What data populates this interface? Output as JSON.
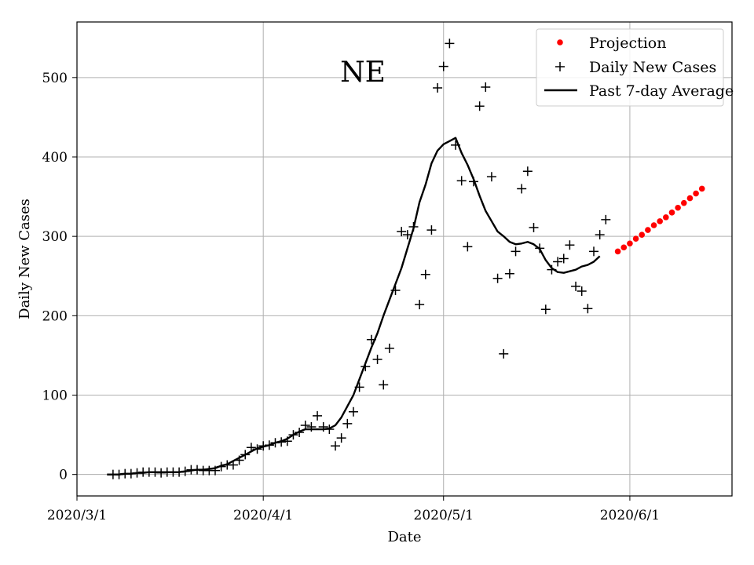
{
  "chart_data": {
    "type": "line",
    "title": "NE",
    "xlabel": "Date",
    "ylabel": "Daily New Cases",
    "x_start_date": "2020/3/1",
    "x_tick_labels": [
      "2020/3/1",
      "2020/4/1",
      "2020/5/1",
      "2020/6/1"
    ],
    "x_tick_days": [
      0,
      31,
      61,
      92
    ],
    "xlim_days": [
      0,
      109
    ],
    "y_ticks": [
      0,
      100,
      200,
      300,
      400,
      500
    ],
    "ylim": [
      -27,
      570
    ],
    "grid": true,
    "legend_position": "top-right",
    "series": [
      {
        "name": "Projection",
        "style": "red-dot",
        "color": "#ff0000",
        "start_day": 90,
        "values": [
          281,
          286,
          291,
          297,
          302,
          308,
          314,
          319,
          324,
          330,
          336,
          342,
          348,
          354,
          360
        ]
      },
      {
        "name": "Daily New Cases",
        "style": "plus-marker",
        "color": "#000000",
        "start_day": 6,
        "values": [
          0,
          0,
          1,
          1,
          2,
          3,
          3,
          3,
          2,
          3,
          3,
          3,
          4,
          6,
          6,
          5,
          5,
          5,
          10,
          12,
          12,
          18,
          25,
          34,
          32,
          36,
          37,
          40,
          41,
          42,
          50,
          53,
          62,
          60,
          74,
          60,
          57,
          36,
          46,
          64,
          79,
          110,
          136,
          170,
          145,
          113,
          159,
          232,
          306,
          302,
          312,
          214,
          252,
          308,
          487,
          514,
          543,
          415,
          370,
          287,
          369,
          464,
          488,
          375,
          247,
          152,
          253,
          281,
          360,
          382,
          311,
          285,
          208,
          258,
          268,
          272,
          289,
          237,
          231,
          209,
          281,
          302,
          321
        ]
      },
      {
        "name": "Past 7-day Average",
        "style": "line",
        "color": "#000000",
        "start_day": 5,
        "values": [
          0,
          0,
          0,
          1,
          1,
          2,
          2,
          3,
          3,
          3,
          3,
          3,
          3,
          4,
          5,
          6,
          6,
          7,
          8,
          11,
          13,
          17,
          21,
          25,
          29,
          33,
          35,
          37,
          40,
          42,
          45,
          50,
          54,
          57,
          57,
          57,
          57,
          58,
          62,
          72,
          86,
          100,
          120,
          140,
          160,
          178,
          200,
          220,
          240,
          260,
          285,
          310,
          343,
          365,
          392,
          408,
          416,
          420,
          424,
          405,
          390,
          372,
          351,
          332,
          319,
          306,
          300,
          293,
          290,
          291,
          293,
          290,
          284,
          270,
          260,
          255,
          254,
          256,
          258,
          262,
          264,
          268,
          275
        ]
      }
    ]
  }
}
